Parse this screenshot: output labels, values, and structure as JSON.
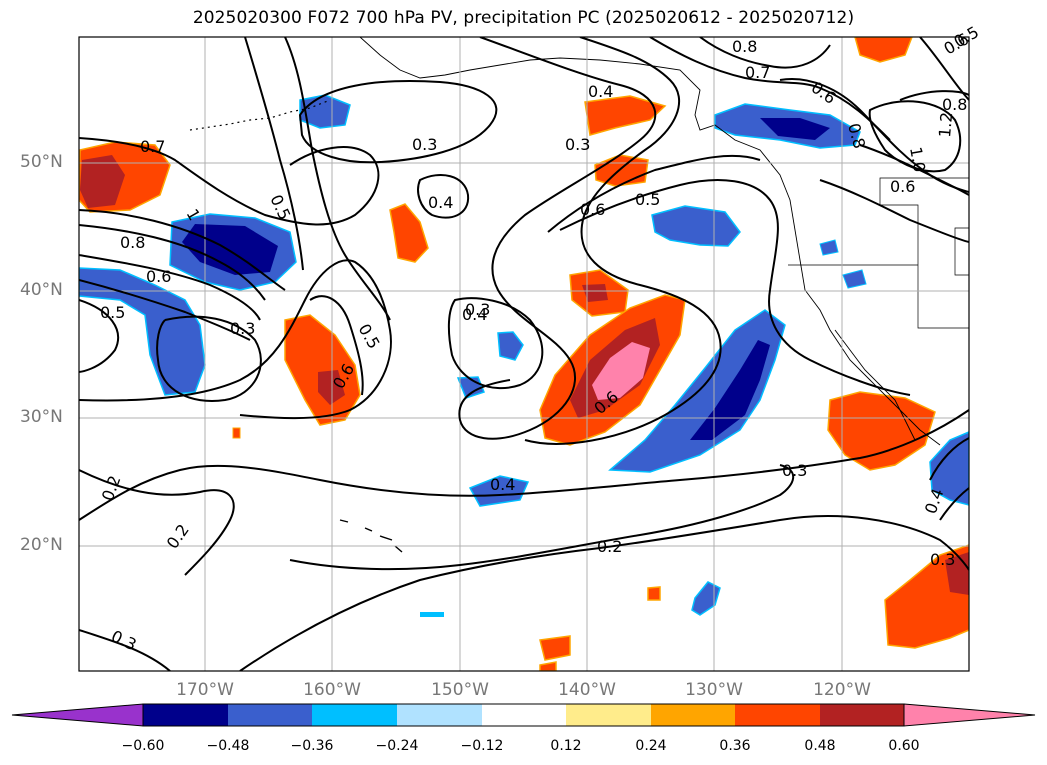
{
  "title": "2025020300 F072 700 hPa PV, precipitation PC (2025020612 - 2025020712)",
  "latitude_labels": [
    "50°N",
    "40°N",
    "30°N",
    "20°N"
  ],
  "longitude_labels": [
    "170°W",
    "160°W",
    "150°W",
    "140°W",
    "130°W",
    "120°W"
  ],
  "pv_contour_labels": [
    "0.7",
    "0.5",
    "1",
    "0.8",
    "0.6",
    "0.5",
    "0.3",
    "0.3",
    "0.4",
    "0.4",
    "0.3",
    "0.4",
    "0.6",
    "0.5",
    "0.3",
    "0.5",
    "0.6",
    "0.6",
    "0.8",
    "0.7",
    "0.6",
    "0.8",
    "0.8",
    "1.0",
    "1.2",
    "0.6",
    "0.4",
    "0.3",
    "0.2",
    "0.2",
    "0.3",
    "0.2",
    "0.3",
    "0.4",
    "0.6",
    "0.5"
  ],
  "colorbar": {
    "ticks": [
      "−0.60",
      "−0.48",
      "−0.36",
      "−0.24",
      "−0.12",
      "0.12",
      "0.24",
      "0.36",
      "0.48",
      "0.60"
    ],
    "bins": [
      {
        "range": "< -0.60",
        "color": "#9932cc"
      },
      {
        "range": "-0.60 to -0.48",
        "color": "#00008b"
      },
      {
        "range": "-0.48 to -0.36",
        "color": "#3a5fcd"
      },
      {
        "range": "-0.36 to -0.24",
        "color": "#00bfff"
      },
      {
        "range": "-0.24 to -0.12",
        "color": "#b0e2ff"
      },
      {
        "range": "-0.12 to 0.12",
        "color": "#ffffff"
      },
      {
        "range": "0.12 to 0.24",
        "color": "#ffec8b"
      },
      {
        "range": "0.24 to 0.36",
        "color": "#ffa500"
      },
      {
        "range": "0.36 to 0.48",
        "color": "#ff4500"
      },
      {
        "range": "0.48 to 0.60",
        "color": "#b22222"
      },
      {
        "range": "> 0.60",
        "color": "#ff82ab"
      }
    ]
  }
}
